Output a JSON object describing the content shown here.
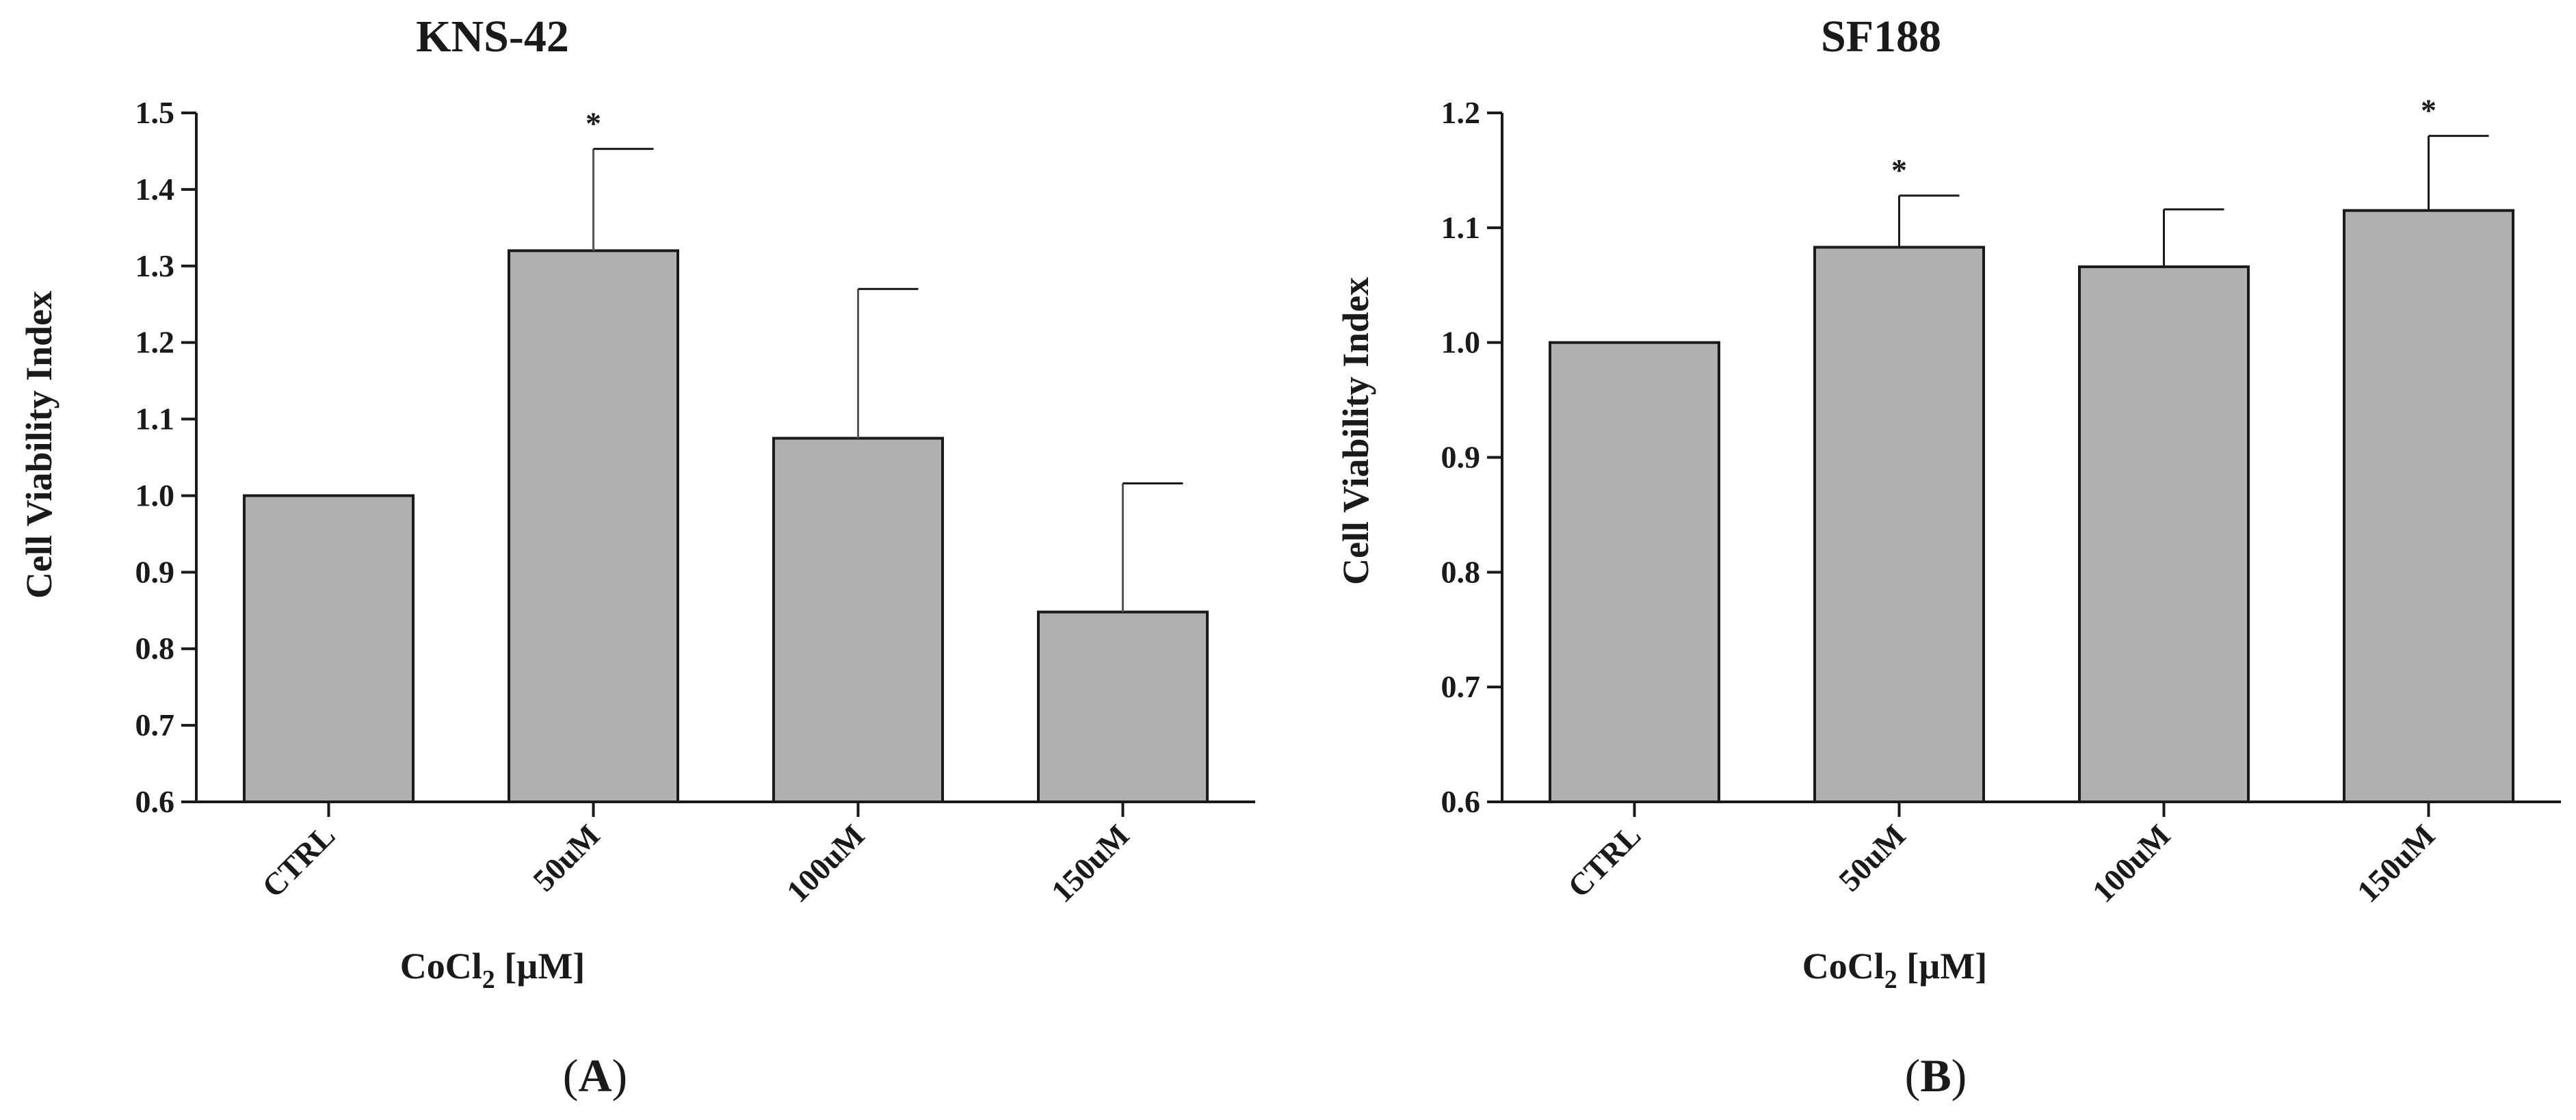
{
  "chart_data": [
    {
      "panel": "A",
      "type": "bar",
      "title": "KNS-42",
      "ylabel": "Cell Viability Index",
      "xlabel": {
        "main": "CoCl",
        "sub": "2",
        "unit": " [µM]"
      },
      "categories": [
        "CTRL",
        "50uM",
        "100uM",
        "150uM"
      ],
      "values": [
        1.0,
        1.32,
        1.075,
        0.848
      ],
      "errors": [
        0,
        0.133,
        0.195,
        0.168
      ],
      "significance": [
        "",
        "*",
        "",
        ""
      ],
      "ylim": [
        0.6,
        1.5
      ],
      "yticks": [
        0.6,
        0.7,
        0.8,
        0.9,
        1.0,
        1.1,
        1.2,
        1.3,
        1.4,
        1.5
      ],
      "tick_labels": [
        "0.6",
        "0.7",
        "0.8",
        "0.9",
        "1.0",
        "1.1",
        "1.2",
        "1.3",
        "1.4",
        "1.5"
      ],
      "bar_color": "#b0b0b0"
    },
    {
      "panel": "B",
      "type": "bar",
      "title": "SF188",
      "ylabel": "Cell Viability Index",
      "xlabel": {
        "main": "CoCl",
        "sub": "2",
        "unit": " [µM]"
      },
      "categories": [
        "CTRL",
        "50uM",
        "100uM",
        "150uM"
      ],
      "values": [
        1.0,
        1.083,
        1.066,
        1.115
      ],
      "errors": [
        0,
        0.045,
        0.05,
        0.065
      ],
      "significance": [
        "",
        "*",
        "",
        "*"
      ],
      "ylim": [
        0.6,
        1.2
      ],
      "yticks": [
        0.6,
        0.7,
        0.8,
        0.9,
        1.0,
        1.1,
        1.2
      ],
      "tick_labels": [
        "0.6",
        "0.7",
        "0.8",
        "0.9",
        "1.0",
        "1.1",
        "1.2"
      ],
      "bar_color": "#b0b0b0"
    }
  ],
  "colors": {
    "axis": "#1a1a1a",
    "bar": "#b0b0b0",
    "error_a_upper": "#555555"
  }
}
